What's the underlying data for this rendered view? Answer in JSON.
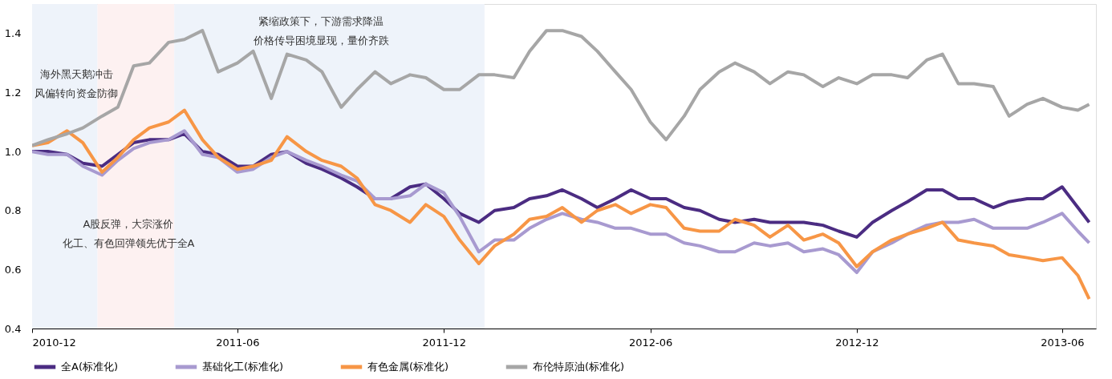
{
  "chart_data": {
    "type": "line",
    "legend": "bottom",
    "grid": false,
    "line_style": "solid",
    "marker": "none",
    "xlim": [
      "2010-12-01",
      "2013-07-01"
    ],
    "xticks": [
      "2010-12",
      "2011-06",
      "2011-12",
      "2012-06",
      "2012-12",
      "2013-06"
    ],
    "ylim": [
      0.4,
      1.5
    ],
    "yticks": [
      0.4,
      0.6,
      0.8,
      {
        "value": 1,
        "label": "1.0"
      },
      1.2,
      1.4
    ],
    "bands": [
      {
        "axis": "x",
        "from": "2010-12-01",
        "to": "2011-01-28",
        "color": "#eef3fa"
      },
      {
        "axis": "x",
        "from": "2011-01-28",
        "to": "2011-04-06",
        "color": "#fdf1f1"
      },
      {
        "axis": "x",
        "from": "2011-04-06",
        "to": "2012-01-06",
        "color": "#eef3fa"
      }
    ],
    "annotations": [
      "海外黑天鹅冲击",
      "风偏转向资金防御",
      "紧缩政策下，下游需求降温",
      "价格传导困境显现，量价齐跌",
      "A股反弹，大宗涨价",
      "化工、有色回弹领先优于全A"
    ],
    "x": [
      "2010-12-01",
      "2010-12-15",
      "2011-01-01",
      "2011-01-15",
      "2011-02-01",
      "2011-02-15",
      "2011-03-01",
      "2011-03-15",
      "2011-04-01",
      "2011-04-15",
      "2011-05-01",
      "2011-05-15",
      "2011-06-01",
      "2011-06-15",
      "2011-07-01",
      "2011-07-15",
      "2011-08-01",
      "2011-08-15",
      "2011-09-01",
      "2011-09-15",
      "2011-10-01",
      "2011-10-15",
      "2011-11-01",
      "2011-11-15",
      "2011-12-01",
      "2011-12-15",
      "2012-01-01",
      "2012-01-15",
      "2012-02-01",
      "2012-02-15",
      "2012-03-01",
      "2012-03-15",
      "2012-04-01",
      "2012-04-15",
      "2012-05-01",
      "2012-05-15",
      "2012-06-01",
      "2012-06-15",
      "2012-07-01",
      "2012-07-15",
      "2012-08-01",
      "2012-08-15",
      "2012-09-01",
      "2012-09-15",
      "2012-10-01",
      "2012-10-15",
      "2012-11-01",
      "2012-11-15",
      "2012-12-01",
      "2012-12-15",
      "2013-01-01",
      "2013-01-15",
      "2013-02-01",
      "2013-02-15",
      "2013-03-01",
      "2013-03-15",
      "2013-04-01",
      "2013-04-15",
      "2013-05-01",
      "2013-05-15",
      "2013-06-01",
      "2013-06-15",
      "2013-06-25"
    ],
    "series": [
      {
        "name": "全A(标准化)",
        "color": "#4b2c82",
        "values": [
          1.0,
          1.0,
          0.99,
          0.96,
          0.95,
          0.99,
          1.03,
          1.04,
          1.04,
          1.06,
          1.0,
          0.99,
          0.95,
          0.95,
          0.99,
          1.0,
          0.96,
          0.94,
          0.91,
          0.88,
          0.84,
          0.84,
          0.88,
          0.89,
          0.84,
          0.79,
          0.76,
          0.8,
          0.81,
          0.84,
          0.85,
          0.87,
          0.84,
          0.81,
          0.84,
          0.87,
          0.84,
          0.84,
          0.81,
          0.8,
          0.77,
          0.76,
          0.77,
          0.76,
          0.76,
          0.76,
          0.75,
          0.73,
          0.71,
          0.76,
          0.8,
          0.83,
          0.87,
          0.87,
          0.84,
          0.84,
          0.81,
          0.83,
          0.84,
          0.84,
          0.88,
          0.81,
          0.76
        ]
      },
      {
        "name": "基础化工(标准化)",
        "color": "#a89ad0",
        "values": [
          1.0,
          0.99,
          0.99,
          0.95,
          0.92,
          0.97,
          1.01,
          1.03,
          1.04,
          1.07,
          0.99,
          0.98,
          0.93,
          0.94,
          0.98,
          1.0,
          0.97,
          0.95,
          0.92,
          0.9,
          0.84,
          0.84,
          0.85,
          0.89,
          0.86,
          0.78,
          0.66,
          0.7,
          0.7,
          0.74,
          0.77,
          0.79,
          0.77,
          0.76,
          0.74,
          0.74,
          0.72,
          0.72,
          0.69,
          0.68,
          0.66,
          0.66,
          0.69,
          0.68,
          0.69,
          0.66,
          0.67,
          0.65,
          0.59,
          0.66,
          0.69,
          0.72,
          0.75,
          0.76,
          0.76,
          0.77,
          0.74,
          0.74,
          0.74,
          0.76,
          0.79,
          0.73,
          0.69
        ]
      },
      {
        "name": "有色金属(标准化)",
        "color": "#f79646",
        "values": [
          1.02,
          1.03,
          1.07,
          1.03,
          0.93,
          0.98,
          1.04,
          1.08,
          1.1,
          1.14,
          1.04,
          0.98,
          0.94,
          0.95,
          0.97,
          1.05,
          1.0,
          0.97,
          0.95,
          0.91,
          0.82,
          0.8,
          0.76,
          0.82,
          0.78,
          0.7,
          0.62,
          0.68,
          0.72,
          0.77,
          0.78,
          0.81,
          0.76,
          0.8,
          0.82,
          0.79,
          0.82,
          0.81,
          0.74,
          0.73,
          0.73,
          0.77,
          0.75,
          0.71,
          0.75,
          0.7,
          0.72,
          0.69,
          0.61,
          0.66,
          0.7,
          0.72,
          0.74,
          0.76,
          0.7,
          0.69,
          0.68,
          0.65,
          0.64,
          0.63,
          0.64,
          0.58,
          0.5
        ]
      },
      {
        "name": "布伦特原油(标准化)",
        "color": "#a6a6a6",
        "values": [
          1.02,
          1.04,
          1.06,
          1.08,
          1.12,
          1.15,
          1.29,
          1.3,
          1.37,
          1.38,
          1.41,
          1.27,
          1.3,
          1.34,
          1.18,
          1.33,
          1.31,
          1.27,
          1.15,
          1.21,
          1.27,
          1.23,
          1.26,
          1.25,
          1.21,
          1.21,
          1.26,
          1.26,
          1.25,
          1.34,
          1.41,
          1.41,
          1.39,
          1.34,
          1.27,
          1.21,
          1.1,
          1.04,
          1.12,
          1.21,
          1.27,
          1.3,
          1.27,
          1.23,
          1.27,
          1.26,
          1.22,
          1.25,
          1.23,
          1.26,
          1.26,
          1.25,
          1.31,
          1.33,
          1.23,
          1.23,
          1.22,
          1.12,
          1.16,
          1.18,
          1.15,
          1.14,
          1.16
        ]
      }
    ]
  }
}
